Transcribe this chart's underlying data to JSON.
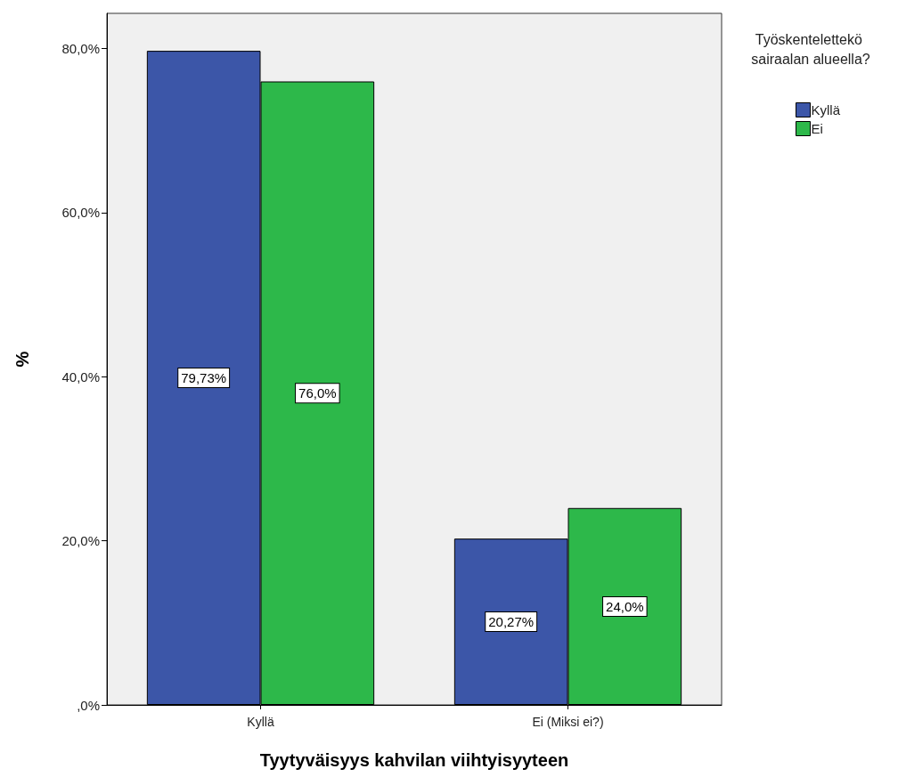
{
  "chart_data": {
    "type": "bar",
    "xlabel": "Tyytyväisyys kahvilan viihtyisyyteen",
    "ylabel": "%",
    "legend_title": "Työskentelettekö sairaalan alueella?",
    "categories": [
      "Kyllä",
      "Ei (Miksi ei?)"
    ],
    "series": [
      {
        "name": "Kyllä",
        "color": "#3c56a8",
        "values": [
          79.73,
          20.27
        ],
        "value_labels": [
          "79,73%",
          "20,27%"
        ]
      },
      {
        "name": "Ei",
        "color": "#2db84a",
        "values": [
          76.0,
          24.0
        ],
        "value_labels": [
          "76,0%",
          "24,0%"
        ]
      }
    ],
    "ylim": [
      0,
      84.3
    ],
    "yticks": [
      {
        "value": 0,
        "label": ",0%"
      },
      {
        "value": 20,
        "label": "20,0%"
      },
      {
        "value": 40,
        "label": "40,0%"
      },
      {
        "value": 60,
        "label": "60,0%"
      },
      {
        "value": 80,
        "label": "80,0%"
      }
    ],
    "grid": false,
    "legend": "top right"
  }
}
